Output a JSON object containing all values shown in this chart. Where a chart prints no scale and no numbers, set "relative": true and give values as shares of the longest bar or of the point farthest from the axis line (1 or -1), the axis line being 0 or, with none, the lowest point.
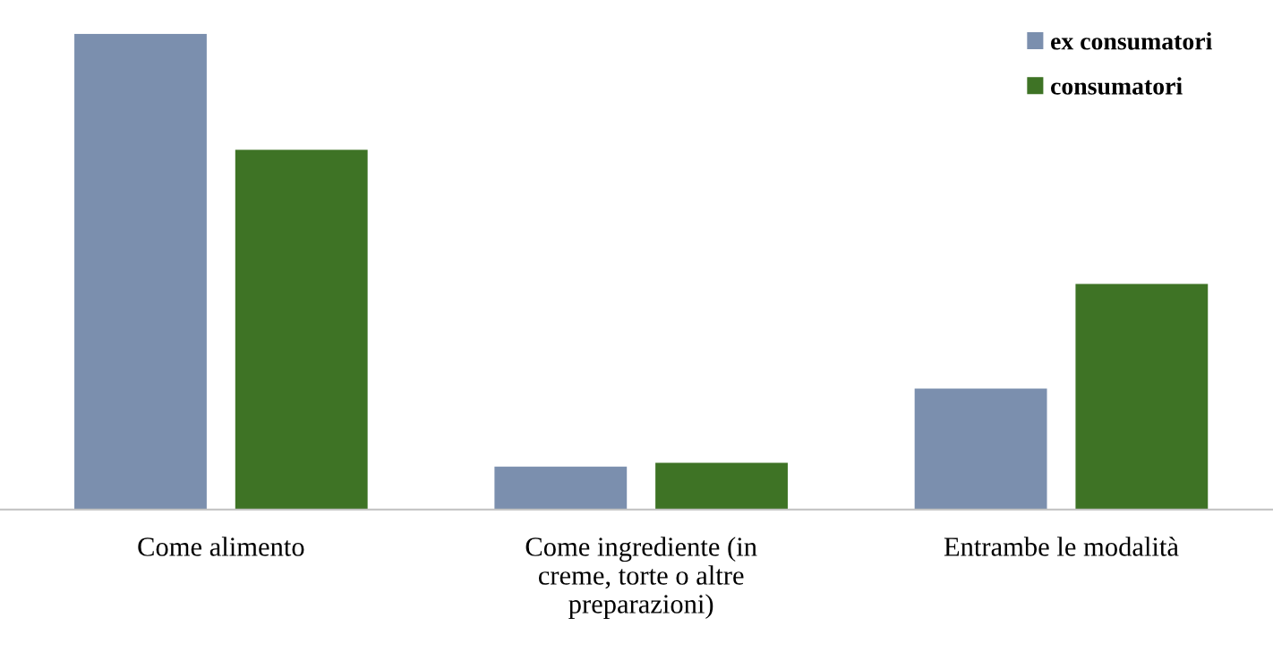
{
  "chart_data": {
    "type": "bar",
    "relative": true,
    "categories": [
      "Come alimento",
      "Come ingrediente (in\ncreme, torte o altre\npreparazioni)",
      "Entrambe le modalità"
    ],
    "series": [
      {
        "name": "ex consumatori",
        "color": "#7b8fae",
        "values": [
          1.0,
          0.09,
          0.254
        ]
      },
      {
        "name": "consumatori",
        "color": "#3e7325",
        "values": [
          0.756,
          0.098,
          0.474
        ]
      }
    ],
    "legend": "top right",
    "grid": false
  }
}
